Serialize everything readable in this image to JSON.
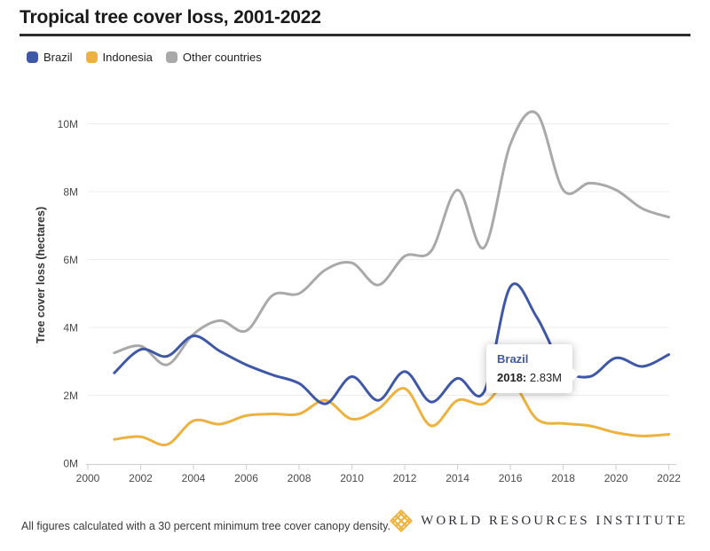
{
  "header": {
    "title": "Tropical tree cover loss, 2001-2022"
  },
  "chart_data": {
    "type": "line",
    "title": "Tropical tree cover loss, 2001-2022",
    "xlabel": "",
    "ylabel": "Tree cover loss (hectares)",
    "x": [
      2001,
      2002,
      2003,
      2004,
      2005,
      2006,
      2007,
      2008,
      2009,
      2010,
      2011,
      2012,
      2013,
      2014,
      2015,
      2016,
      2017,
      2018,
      2019,
      2020,
      2021,
      2022
    ],
    "series": [
      {
        "name": "Brazil",
        "color": "#3F57A7",
        "values": [
          2.66,
          3.35,
          3.15,
          3.75,
          3.3,
          2.9,
          2.6,
          2.35,
          1.75,
          2.55,
          1.85,
          2.7,
          1.8,
          2.5,
          2.1,
          5.2,
          4.3,
          2.83,
          2.55,
          3.1,
          2.85,
          3.2
        ]
      },
      {
        "name": "Indonesia",
        "color": "#EDB23D",
        "values": [
          0.7,
          0.78,
          0.55,
          1.25,
          1.15,
          1.4,
          1.45,
          1.45,
          1.85,
          1.3,
          1.6,
          2.2,
          1.1,
          1.85,
          1.75,
          2.4,
          1.3,
          1.17,
          1.1,
          0.9,
          0.8,
          0.85
        ]
      },
      {
        "name": "Other countries",
        "color": "#A9A9A9",
        "values": [
          3.25,
          3.45,
          2.9,
          3.8,
          4.2,
          3.9,
          4.95,
          5.0,
          5.7,
          5.9,
          5.25,
          6.1,
          6.25,
          8.05,
          6.35,
          9.4,
          10.3,
          8.05,
          8.25,
          8.05,
          7.5,
          7.25
        ]
      }
    ],
    "x_ticks": [
      "2000",
      "2002",
      "2004",
      "2006",
      "2008",
      "2010",
      "2012",
      "2014",
      "2016",
      "2018",
      "2020",
      "2022"
    ],
    "y_ticks": [
      "0M",
      "2M",
      "4M",
      "6M",
      "8M",
      "10M"
    ],
    "y_tick_values": [
      0,
      2,
      4,
      6,
      8,
      10
    ],
    "xlim": [
      2000,
      2022
    ],
    "ylim": [
      0,
      10.5
    ],
    "grid": true,
    "legend_position": "top-left",
    "unit": "M"
  },
  "tooltip": {
    "series": "Brazil",
    "year_label": "2018:",
    "value": "2.83M"
  },
  "footer": {
    "note": "All figures calculated with a 30 percent minimum tree cover canopy density.",
    "org": "WORLD RESOURCES INSTITUTE"
  },
  "colors": {
    "brazil": "#3F57A7",
    "indonesia": "#EDB23D",
    "other": "#A9A9A9",
    "grid": "#EDEDED",
    "axis": "#CFCFCF",
    "tick_text": "#4A4A4A",
    "logo_gold": "#EFB23E"
  }
}
